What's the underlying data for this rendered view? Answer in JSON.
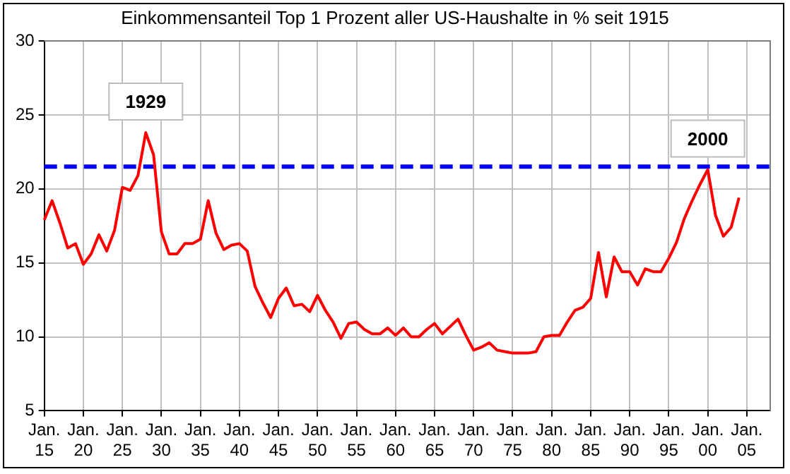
{
  "chart_data": {
    "type": "line",
    "title": "Einkommensanteil Top 1 Prozent aller US-Haushalte in % seit 1915",
    "categories": [
      "Jan.\n15",
      null,
      null,
      null,
      null,
      "Jan.\n20",
      null,
      null,
      null,
      null,
      "Jan.\n25",
      null,
      null,
      null,
      null,
      "Jan.\n30",
      null,
      null,
      null,
      null,
      "Jan.\n35",
      null,
      null,
      null,
      null,
      "Jan.\n40",
      null,
      null,
      null,
      null,
      "Jan.\n45",
      null,
      null,
      null,
      null,
      "Jan.\n50",
      null,
      null,
      null,
      null,
      "Jan.\n55",
      null,
      null,
      null,
      null,
      "Jan.\n60",
      null,
      null,
      null,
      null,
      "Jan.\n65",
      null,
      null,
      null,
      null,
      "Jan.\n70",
      null,
      null,
      null,
      null,
      "Jan.\n75",
      null,
      null,
      null,
      null,
      "Jan.\n80",
      null,
      null,
      null,
      null,
      "Jan.\n85",
      null,
      null,
      null,
      null,
      "Jan.\n90",
      null,
      null,
      null,
      null,
      "Jan.\n95",
      null,
      null,
      null,
      null,
      "Jan.\n00",
      null,
      null,
      null,
      null,
      "Jan.\n05",
      null,
      null,
      null
    ],
    "series": [
      {
        "color": "#ff0000",
        "values": [
          17.9,
          19.2,
          17.7,
          16.0,
          16.3,
          14.9,
          15.6,
          16.9,
          15.8,
          17.2,
          20.1,
          19.9,
          20.9,
          23.8,
          22.3,
          17.1,
          15.6,
          15.6,
          16.3,
          16.3,
          16.6,
          19.2,
          17.0,
          15.9,
          16.2,
          16.3,
          15.8,
          13.4,
          12.3,
          11.3,
          12.6,
          13.3,
          12.1,
          12.2,
          11.7,
          12.8,
          11.8,
          11.0,
          9.9,
          10.9,
          11.0,
          10.5,
          10.2,
          10.2,
          10.6,
          10.1,
          10.6,
          10.0,
          10.0,
          10.5,
          10.9,
          10.2,
          10.7,
          11.2,
          10.1,
          9.1,
          9.3,
          9.6,
          9.1,
          9.0,
          8.9,
          8.9,
          8.9,
          9.0,
          10.0,
          10.1,
          10.1,
          11.0,
          11.8,
          12.0,
          12.6,
          15.7,
          12.7,
          15.4,
          14.4,
          14.4,
          13.5,
          14.6,
          14.4,
          14.4,
          15.3,
          16.4,
          18.0,
          19.2,
          20.3,
          21.3,
          18.2,
          16.8,
          17.4,
          19.4,
          null,
          null,
          null,
          null
        ]
      }
    ],
    "ylim": [
      5,
      30
    ],
    "yticks": [
      5,
      10,
      15,
      20,
      25,
      30
    ],
    "grid": true,
    "legend": false,
    "marker": "none",
    "line_style": "solid",
    "ref_lines": [
      {
        "axis": "y",
        "value": 21.5,
        "color": "#0000ff",
        "line_style": "dashed"
      }
    ],
    "annotations": [
      {
        "text": "1929",
        "y": 23.8
      },
      {
        "text": "2000",
        "y": 21.3
      }
    ]
  }
}
